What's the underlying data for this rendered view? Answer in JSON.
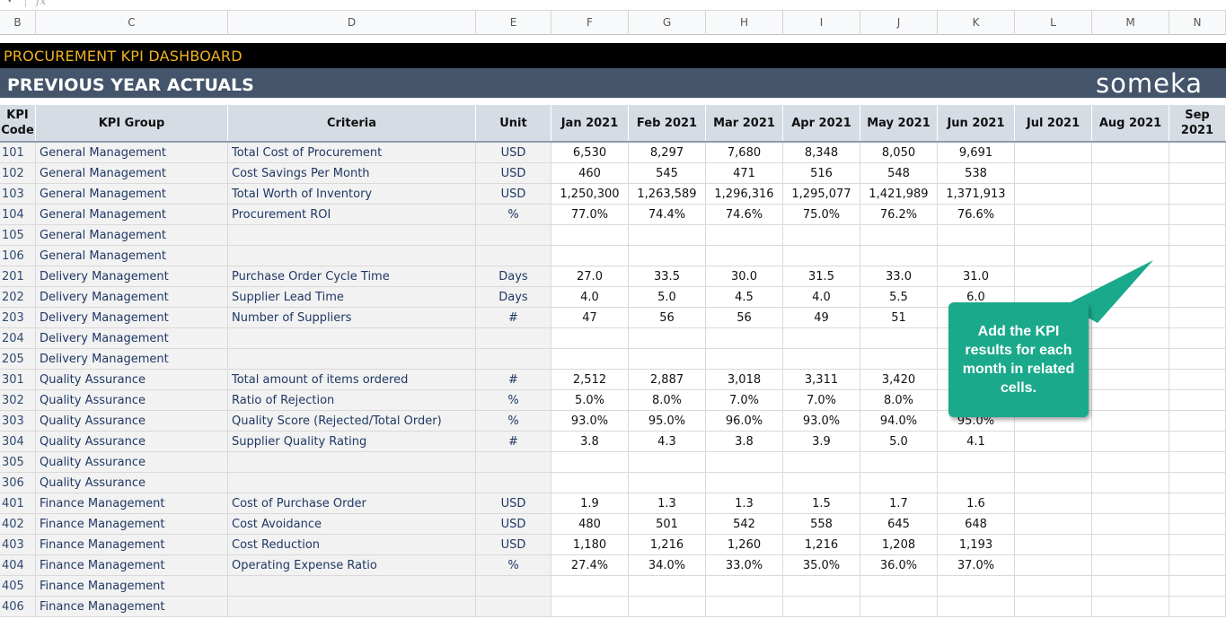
{
  "formula_bar": {
    "fx_symbol": "fx",
    "dropdown": "▾"
  },
  "columns": [
    "B",
    "C",
    "D",
    "E",
    "F",
    "G",
    "H",
    "I",
    "J",
    "K",
    "L",
    "M",
    "N"
  ],
  "title": "PROCUREMENT KPI DASHBOARD",
  "subtitle": "PREVIOUS YEAR ACTUALS",
  "brand": "someka",
  "colors": {
    "title_bg": "#000000",
    "title_text": "#f0b323",
    "subtitle_bg": "#44546a",
    "header_bg": "#d6dce4",
    "callout_bg": "#1aa98b"
  },
  "headers": {
    "code_line1": "KPI",
    "code_line2": "Code",
    "group": "KPI Group",
    "criteria": "Criteria",
    "unit": "Unit",
    "months": [
      "Jan 2021",
      "Feb 2021",
      "Mar 2021",
      "Apr 2021",
      "May 2021",
      "Jun 2021",
      "Jul 2021",
      "Aug 2021",
      "Sep 2021"
    ]
  },
  "rows": [
    {
      "code": "101",
      "group": "General Management",
      "criteria": "Total Cost of Procurement",
      "unit": "USD",
      "values": [
        "6,530",
        "8,297",
        "7,680",
        "8,348",
        "8,050",
        "9,691",
        "",
        "",
        ""
      ]
    },
    {
      "code": "102",
      "group": "General Management",
      "criteria": "Cost Savings Per Month",
      "unit": "USD",
      "values": [
        "460",
        "545",
        "471",
        "516",
        "548",
        "538",
        "",
        "",
        ""
      ]
    },
    {
      "code": "103",
      "group": "General Management",
      "criteria": "Total Worth of Inventory",
      "unit": "USD",
      "values": [
        "1,250,300",
        "1,263,589",
        "1,296,316",
        "1,295,077",
        "1,421,989",
        "1,371,913",
        "",
        "",
        ""
      ]
    },
    {
      "code": "104",
      "group": "General Management",
      "criteria": "Procurement ROI",
      "unit": "%",
      "values": [
        "77.0%",
        "74.4%",
        "74.6%",
        "75.0%",
        "76.2%",
        "76.6%",
        "",
        "",
        ""
      ]
    },
    {
      "code": "105",
      "group": "General Management",
      "criteria": "",
      "unit": "",
      "values": [
        "",
        "",
        "",
        "",
        "",
        "",
        "",
        "",
        ""
      ]
    },
    {
      "code": "106",
      "group": "General Management",
      "criteria": "",
      "unit": "",
      "values": [
        "",
        "",
        "",
        "",
        "",
        "",
        "",
        "",
        ""
      ]
    },
    {
      "code": "201",
      "group": "Delivery Management",
      "criteria": "Purchase Order Cycle Time",
      "unit": "Days",
      "values": [
        "27.0",
        "33.5",
        "30.0",
        "31.5",
        "33.0",
        "31.0",
        "",
        "",
        ""
      ]
    },
    {
      "code": "202",
      "group": "Delivery Management",
      "criteria": "Supplier Lead Time",
      "unit": "Days",
      "values": [
        "4.0",
        "5.0",
        "4.5",
        "4.0",
        "5.5",
        "6.0",
        "",
        "",
        ""
      ]
    },
    {
      "code": "203",
      "group": "Delivery Management",
      "criteria": "Number of Suppliers",
      "unit": "#",
      "values": [
        "47",
        "56",
        "56",
        "49",
        "51",
        "",
        "",
        "",
        ""
      ]
    },
    {
      "code": "204",
      "group": "Delivery Management",
      "criteria": "",
      "unit": "",
      "values": [
        "",
        "",
        "",
        "",
        "",
        "",
        "",
        "",
        ""
      ]
    },
    {
      "code": "205",
      "group": "Delivery Management",
      "criteria": "",
      "unit": "",
      "values": [
        "",
        "",
        "",
        "",
        "",
        "",
        "",
        "",
        ""
      ]
    },
    {
      "code": "301",
      "group": "Quality Assurance",
      "criteria": "Total amount of items ordered",
      "unit": "#",
      "values": [
        "2,512",
        "2,887",
        "3,018",
        "3,311",
        "3,420",
        "",
        "",
        "",
        ""
      ]
    },
    {
      "code": "302",
      "group": "Quality Assurance",
      "criteria": "Ratio of Rejection",
      "unit": "%",
      "values": [
        "5.0%",
        "8.0%",
        "7.0%",
        "7.0%",
        "8.0%",
        "",
        "",
        "",
        ""
      ]
    },
    {
      "code": "303",
      "group": "Quality Assurance",
      "criteria": "Quality Score (Rejected/Total Order)",
      "unit": "%",
      "values": [
        "93.0%",
        "95.0%",
        "96.0%",
        "93.0%",
        "94.0%",
        "95.0%",
        "",
        "",
        ""
      ]
    },
    {
      "code": "304",
      "group": "Quality Assurance",
      "criteria": "Supplier Quality Rating",
      "unit": "#",
      "values": [
        "3.8",
        "4.3",
        "3.8",
        "3.9",
        "5.0",
        "4.1",
        "",
        "",
        ""
      ]
    },
    {
      "code": "305",
      "group": "Quality Assurance",
      "criteria": "",
      "unit": "",
      "values": [
        "",
        "",
        "",
        "",
        "",
        "",
        "",
        "",
        ""
      ]
    },
    {
      "code": "306",
      "group": "Quality Assurance",
      "criteria": "",
      "unit": "",
      "values": [
        "",
        "",
        "",
        "",
        "",
        "",
        "",
        "",
        ""
      ]
    },
    {
      "code": "401",
      "group": "Finance Management",
      "criteria": "Cost of Purchase Order",
      "unit": "USD",
      "values": [
        "1.9",
        "1.3",
        "1.3",
        "1.5",
        "1.7",
        "1.6",
        "",
        "",
        ""
      ]
    },
    {
      "code": "402",
      "group": "Finance Management",
      "criteria": "Cost Avoidance",
      "unit": "USD",
      "values": [
        "480",
        "501",
        "542",
        "558",
        "645",
        "648",
        "",
        "",
        ""
      ]
    },
    {
      "code": "403",
      "group": "Finance Management",
      "criteria": "Cost Reduction",
      "unit": "USD",
      "values": [
        "1,180",
        "1,216",
        "1,260",
        "1,216",
        "1,208",
        "1,193",
        "",
        "",
        ""
      ]
    },
    {
      "code": "404",
      "group": "Finance Management",
      "criteria": "Operating Expense Ratio",
      "unit": "%",
      "values": [
        "27.4%",
        "34.0%",
        "33.0%",
        "35.0%",
        "36.0%",
        "37.0%",
        "",
        "",
        ""
      ]
    },
    {
      "code": "405",
      "group": "Finance Management",
      "criteria": "",
      "unit": "",
      "values": [
        "",
        "",
        "",
        "",
        "",
        "",
        "",
        "",
        ""
      ]
    },
    {
      "code": "406",
      "group": "Finance Management",
      "criteria": "",
      "unit": "",
      "values": [
        "",
        "",
        "",
        "",
        "",
        "",
        "",
        "",
        ""
      ]
    }
  ],
  "callout": {
    "text": "Add the KPI results for each month in related cells."
  }
}
